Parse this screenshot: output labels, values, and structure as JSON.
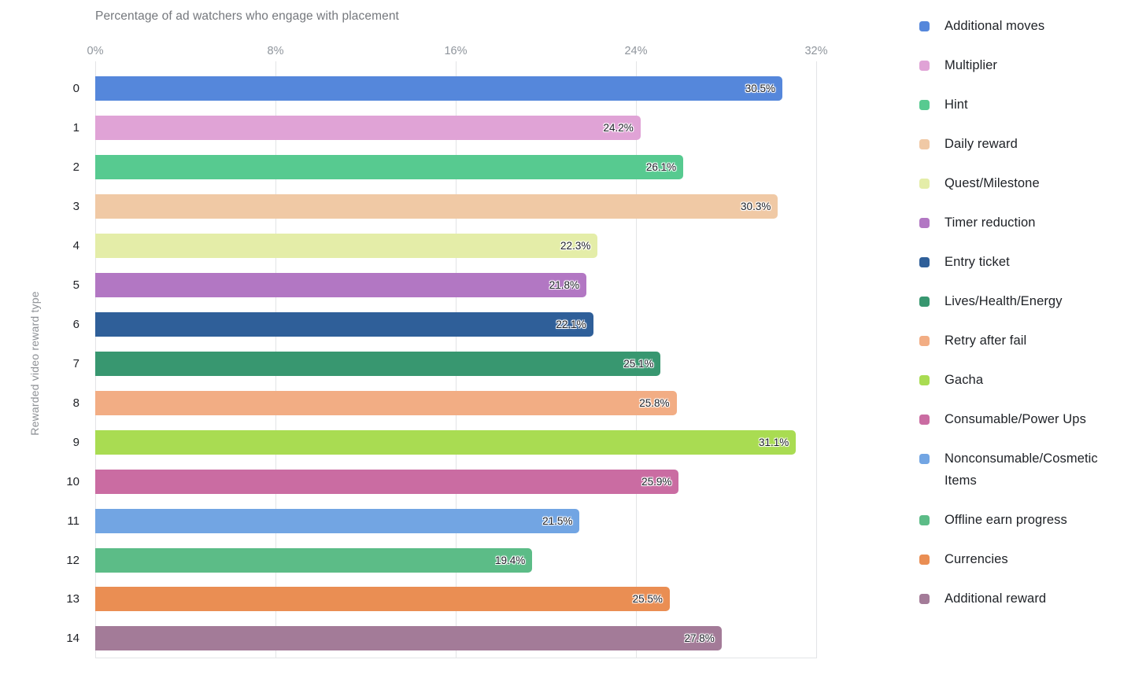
{
  "chart_data": {
    "type": "bar",
    "orientation": "horizontal",
    "title": "Percentage of ad watchers who engage with placement",
    "xlabel": "",
    "ylabel": "Rewarded video reward type",
    "xlim": [
      0,
      32
    ],
    "x_tick_labels": [
      "0%",
      "8%",
      "16%",
      "24%",
      "32%"
    ],
    "grid": true,
    "legend_position": "right",
    "categories": [
      "0",
      "1",
      "2",
      "3",
      "4",
      "5",
      "6",
      "7",
      "8",
      "9",
      "10",
      "11",
      "12",
      "13",
      "14"
    ],
    "values": [
      30.5,
      24.2,
      26.1,
      30.3,
      22.3,
      21.8,
      22.1,
      25.1,
      25.8,
      31.1,
      25.9,
      21.5,
      19.4,
      25.5,
      27.8
    ],
    "value_labels": [
      "30.5%",
      "24.2%",
      "26.1%",
      "30.3%",
      "22.3%",
      "21.8%",
      "22.1%",
      "25.1%",
      "25.8%",
      "31.1%",
      "25.9%",
      "21.5%",
      "19.4%",
      "25.5%",
      "27.8%"
    ],
    "colors": [
      "#5587DB",
      "#E0A3D6",
      "#57CA90",
      "#F0C9A5",
      "#E4EDA8",
      "#B277C3",
      "#2F5F99",
      "#389770",
      "#F2AD84",
      "#A9DC52",
      "#CA6CA2",
      "#72A5E3",
      "#5CBC87",
      "#EA8E53",
      "#A37B98"
    ],
    "legend_labels": [
      "Additional moves",
      "Multiplier",
      "Hint",
      "Daily reward",
      "Quest/Milestone",
      "Timer reduction",
      "Entry ticket",
      "Lives/Health/Energy",
      "Retry after fail",
      "Gacha",
      "Consumable/Power Ups",
      "Nonconsumable/Cosmetic Items",
      "Offline earn progress",
      "Currencies",
      "Additional reward"
    ],
    "grid_color": "#E3E4E6",
    "title_color": "#75787D",
    "tick_label_color": "#8F959C"
  }
}
